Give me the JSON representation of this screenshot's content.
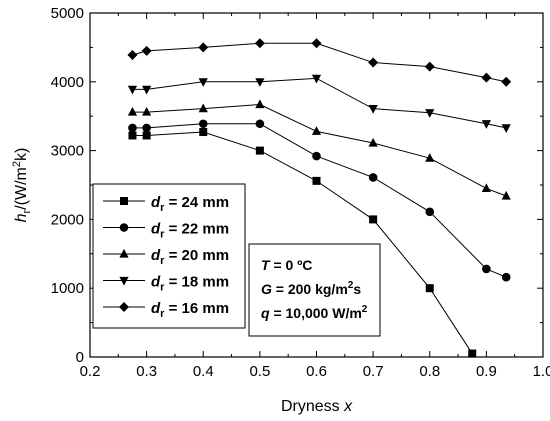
{
  "chart_data": {
    "type": "line",
    "xlabel_text": "Dryness ",
    "xlabel_var": "x",
    "ylabel_parts": {
      "main": "h",
      "sub": "r",
      "unit_open": "/(W/m",
      "sup": "2",
      "unit_close": "k)"
    },
    "xlim": [
      0.2,
      1.0
    ],
    "ylim": [
      0,
      5000
    ],
    "xticks": [
      "0.2",
      "0.3",
      "0.4",
      "0.5",
      "0.6",
      "0.7",
      "0.8",
      "0.9",
      "1.0"
    ],
    "yticks": [
      "0",
      "1000",
      "2000",
      "3000",
      "4000",
      "5000"
    ],
    "series": [
      {
        "name": "24 mm",
        "marker": "square",
        "x": [
          0.275,
          0.3,
          0.4,
          0.5,
          0.6,
          0.7,
          0.8,
          0.875
        ],
        "y": [
          3220,
          3220,
          3270,
          3000,
          2560,
          2000,
          1000,
          50
        ]
      },
      {
        "name": "22 mm",
        "marker": "circle",
        "x": [
          0.275,
          0.3,
          0.4,
          0.5,
          0.6,
          0.7,
          0.8,
          0.9,
          0.935
        ],
        "y": [
          3330,
          3330,
          3390,
          3390,
          2920,
          2610,
          2110,
          1280,
          1160
        ]
      },
      {
        "name": "20 mm",
        "marker": "triangle-up",
        "x": [
          0.275,
          0.3,
          0.4,
          0.5,
          0.6,
          0.7,
          0.8,
          0.9,
          0.935
        ],
        "y": [
          3560,
          3560,
          3610,
          3670,
          3280,
          3110,
          2890,
          2450,
          2340
        ]
      },
      {
        "name": "18 mm",
        "marker": "triangle-down",
        "x": [
          0.275,
          0.3,
          0.4,
          0.5,
          0.6,
          0.7,
          0.8,
          0.9,
          0.935
        ],
        "y": [
          3890,
          3890,
          4000,
          4000,
          4050,
          3610,
          3550,
          3390,
          3330
        ]
      },
      {
        "name": "16 mm",
        "marker": "diamond",
        "x": [
          0.275,
          0.3,
          0.4,
          0.5,
          0.6,
          0.7,
          0.8,
          0.9,
          0.935
        ],
        "y": [
          4390,
          4450,
          4500,
          4560,
          4560,
          4280,
          4220,
          4060,
          4000
        ]
      }
    ],
    "legend": {
      "placement": "lower-left",
      "var_main": "d",
      "var_sub": "r",
      "equals": " = "
    },
    "conditions": [
      {
        "var": "T",
        "text": " = 0  ºC",
        "sup": "",
        "tail": ""
      },
      {
        "var": "G",
        "text": " = 200 kg/m",
        "sup": "2",
        "tail": "s"
      },
      {
        "var": "q",
        "text": " = 10,000 W/m",
        "sup": "2",
        "tail": ""
      }
    ]
  }
}
